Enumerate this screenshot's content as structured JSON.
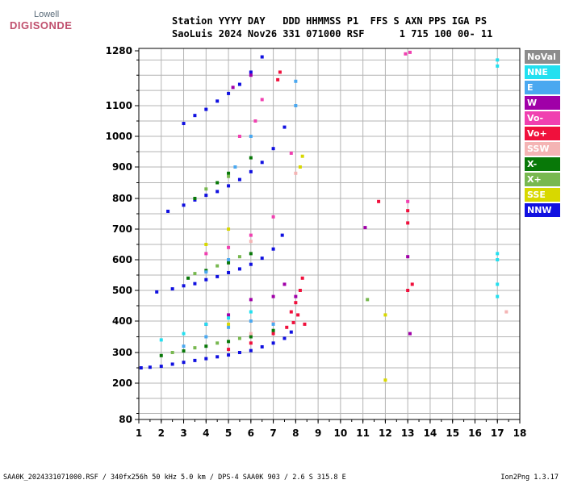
{
  "logo": {
    "line1": "Lowell",
    "line2": "DIGISONDE"
  },
  "header": {
    "line1": "Station YYYY DAY   DDD HHMMSS P1  FFS S AXN PPS IGA PS",
    "line2": "SaoLuis 2024 Nov26 331 071000 RSF      1 715 100 00- 11"
  },
  "legend": [
    {
      "label": "NoVal",
      "color": "#8c8c8c"
    },
    {
      "label": "NNE",
      "color": "#22e0f0"
    },
    {
      "label": "E",
      "color": "#4aa8f0"
    },
    {
      "label": "W",
      "color": "#a000a8"
    },
    {
      "label": "Vo-",
      "color": "#f040b0"
    },
    {
      "label": "Vo+",
      "color": "#f0103c"
    },
    {
      "label": "SSW",
      "color": "#f4b4b4"
    },
    {
      "label": "X-",
      "color": "#087808"
    },
    {
      "label": "X+",
      "color": "#78b850"
    },
    {
      "label": "SSE",
      "color": "#d8d800"
    },
    {
      "label": "NNW",
      "color": "#1010e0"
    }
  ],
  "footer": {
    "left": "SAA0K_2024331071000.RSF / 340fx256h 50 kHz 5.0 km / DPS-4 SAA0K 903 / 2.6 S 315.8 E",
    "right": "Ion2Png 1.3.17"
  },
  "chart_data": {
    "type": "scatter",
    "title": "",
    "xlabel": "",
    "ylabel": "",
    "xlim": [
      1,
      18
    ],
    "ylim": [
      80,
      1280
    ],
    "x_ticks": [
      "1",
      "2",
      "3",
      "4",
      "5",
      "6",
      "7",
      "8",
      "9",
      "10",
      "11",
      "12",
      "13",
      "14",
      "15",
      "16",
      "17",
      "18"
    ],
    "y_ticks": [
      "80",
      "200",
      "300",
      "400",
      "500",
      "600",
      "700",
      "800",
      "900",
      "1000",
      "1100",
      "1280"
    ],
    "grid": true,
    "legend_position": "right",
    "series": [
      {
        "name": "NNW",
        "color": "#1010e0",
        "points": [
          [
            1.1,
            250
          ],
          [
            1.5,
            252
          ],
          [
            2,
            255
          ],
          [
            2.5,
            262
          ],
          [
            3,
            268
          ],
          [
            3.5,
            274
          ],
          [
            4,
            280
          ],
          [
            4.5,
            286
          ],
          [
            5,
            292
          ],
          [
            5.5,
            300
          ],
          [
            6,
            306
          ],
          [
            6.5,
            318
          ],
          [
            7,
            330
          ],
          [
            7.5,
            345
          ],
          [
            7.8,
            365
          ],
          [
            1.8,
            495
          ],
          [
            2.5,
            505
          ],
          [
            3,
            515
          ],
          [
            3.5,
            522
          ],
          [
            4,
            535
          ],
          [
            4.5,
            545
          ],
          [
            5,
            558
          ],
          [
            5.5,
            570
          ],
          [
            6,
            585
          ],
          [
            6.5,
            605
          ],
          [
            7,
            635
          ],
          [
            7.4,
            680
          ],
          [
            2.3,
            758
          ],
          [
            3,
            778
          ],
          [
            3.5,
            795
          ],
          [
            4,
            810
          ],
          [
            4.5,
            822
          ],
          [
            5,
            840
          ],
          [
            5.5,
            860
          ],
          [
            6,
            885
          ],
          [
            6.5,
            915
          ],
          [
            7,
            960
          ],
          [
            7.5,
            1030
          ],
          [
            3,
            1042
          ],
          [
            3.5,
            1068
          ],
          [
            4,
            1088
          ],
          [
            4.5,
            1115
          ],
          [
            5,
            1140
          ],
          [
            5.5,
            1170
          ],
          [
            6,
            1210
          ],
          [
            6.5,
            1260
          ]
        ]
      },
      {
        "name": "Vo+",
        "color": "#f0103c",
        "points": [
          [
            5,
            310
          ],
          [
            6,
            330
          ],
          [
            7,
            360
          ],
          [
            7.6,
            380
          ],
          [
            7.8,
            430
          ],
          [
            8,
            460
          ],
          [
            8.2,
            500
          ],
          [
            8.3,
            540
          ],
          [
            8.1,
            420
          ],
          [
            7.9,
            395
          ],
          [
            8.4,
            390
          ],
          [
            13,
            760
          ],
          [
            13,
            720
          ],
          [
            13,
            500
          ],
          [
            13.2,
            520
          ],
          [
            11.7,
            790
          ],
          [
            7.2,
            1185
          ],
          [
            7.3,
            1210
          ]
        ]
      },
      {
        "name": "Vo-",
        "color": "#f040b0",
        "points": [
          [
            4,
            620
          ],
          [
            5,
            640
          ],
          [
            6,
            680
          ],
          [
            7,
            740
          ],
          [
            7.8,
            945
          ],
          [
            13,
            790
          ],
          [
            12.9,
            1270
          ],
          [
            13.1,
            1275
          ],
          [
            6.2,
            1050
          ],
          [
            5.5,
            1000
          ],
          [
            6.5,
            1120
          ]
        ]
      },
      {
        "name": "W",
        "color": "#a000a8",
        "points": [
          [
            4,
            390
          ],
          [
            5,
            420
          ],
          [
            6,
            470
          ],
          [
            7,
            480
          ],
          [
            7.5,
            520
          ],
          [
            8,
            480
          ],
          [
            11.1,
            705
          ],
          [
            13,
            610
          ],
          [
            13.1,
            360
          ],
          [
            5.2,
            1160
          ],
          [
            6,
            1200
          ]
        ]
      },
      {
        "name": "X-",
        "color": "#087808",
        "points": [
          [
            2,
            290
          ],
          [
            3,
            305
          ],
          [
            4,
            320
          ],
          [
            5,
            335
          ],
          [
            6,
            350
          ],
          [
            7,
            370
          ],
          [
            3.2,
            540
          ],
          [
            4,
            565
          ],
          [
            5,
            590
          ],
          [
            6,
            620
          ],
          [
            3.5,
            800
          ],
          [
            4.5,
            850
          ],
          [
            5,
            880
          ],
          [
            6,
            930
          ]
        ]
      },
      {
        "name": "X+",
        "color": "#78b850",
        "points": [
          [
            2.5,
            300
          ],
          [
            3.5,
            315
          ],
          [
            4.5,
            330
          ],
          [
            5.5,
            345
          ],
          [
            3.5,
            555
          ],
          [
            4.5,
            580
          ],
          [
            5.5,
            610
          ],
          [
            4,
            830
          ],
          [
            5,
            870
          ],
          [
            11.2,
            470
          ]
        ]
      },
      {
        "name": "SSE",
        "color": "#d8d800",
        "points": [
          [
            5,
            390
          ],
          [
            4,
            650
          ],
          [
            5,
            700
          ],
          [
            8.2,
            900
          ],
          [
            8.3,
            935
          ],
          [
            12,
            420
          ],
          [
            12,
            210
          ]
        ]
      },
      {
        "name": "SSW",
        "color": "#f4b4b4",
        "points": [
          [
            6,
            360
          ],
          [
            7,
            395
          ],
          [
            5,
            600
          ],
          [
            6,
            660
          ],
          [
            8,
            880
          ],
          [
            17.4,
            430
          ]
        ]
      },
      {
        "name": "E",
        "color": "#4aa8f0",
        "points": [
          [
            3,
            320
          ],
          [
            4,
            350
          ],
          [
            5,
            380
          ],
          [
            6,
            400
          ],
          [
            7,
            390
          ],
          [
            4,
            560
          ],
          [
            5,
            600
          ],
          [
            5.3,
            900
          ],
          [
            6,
            1000
          ],
          [
            8,
            1100
          ],
          [
            8,
            1180
          ]
        ]
      },
      {
        "name": "NNE",
        "color": "#22e0f0",
        "points": [
          [
            2,
            340
          ],
          [
            3,
            360
          ],
          [
            4,
            390
          ],
          [
            5,
            410
          ],
          [
            6,
            430
          ],
          [
            17,
            1250
          ],
          [
            17,
            1230
          ],
          [
            17,
            620
          ],
          [
            17,
            600
          ],
          [
            17,
            520
          ],
          [
            17,
            480
          ]
        ]
      }
    ]
  }
}
